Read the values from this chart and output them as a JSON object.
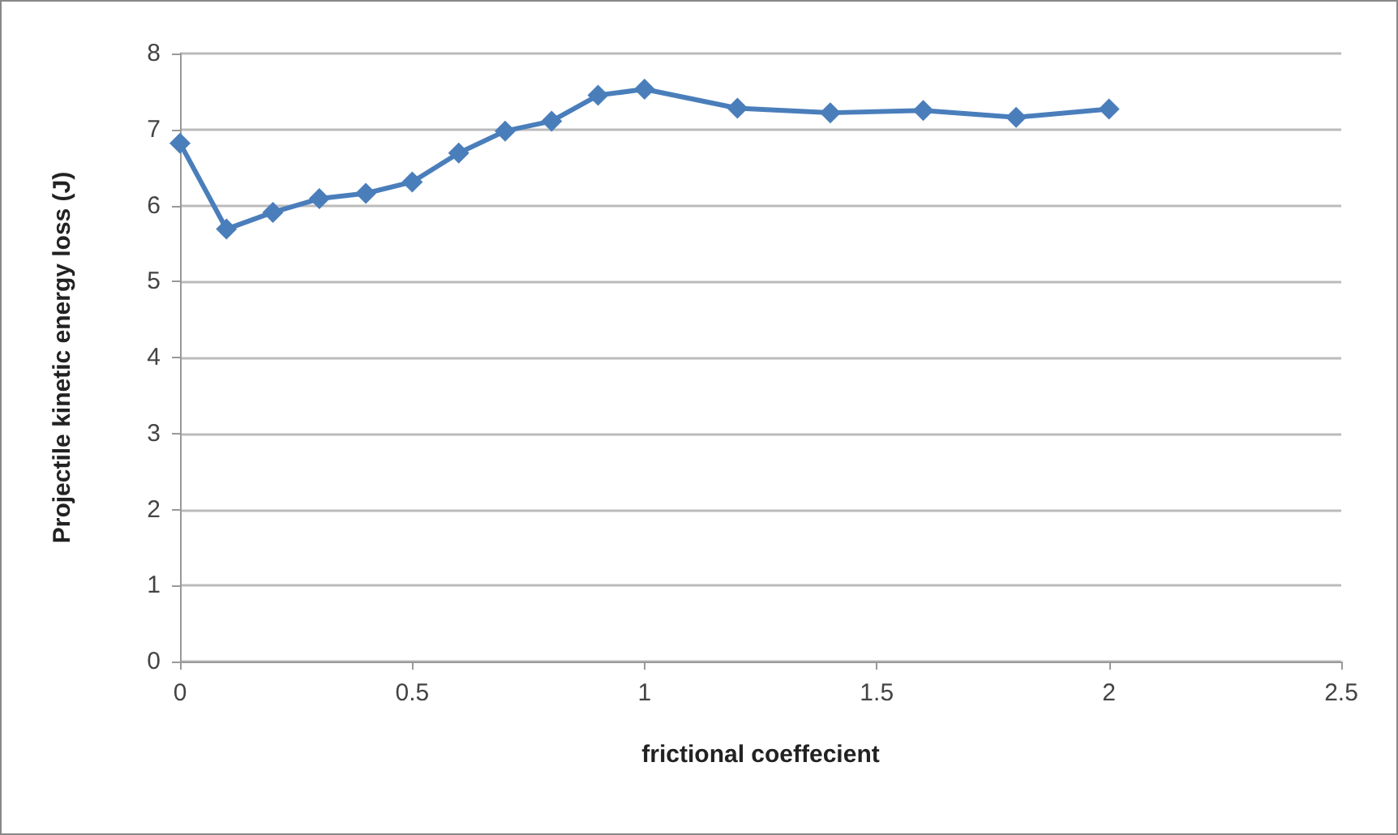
{
  "chart_data": {
    "type": "line",
    "xlabel": "frictional coeffecient",
    "ylabel": "Projectile kinetic energy loss (J)",
    "x": [
      0,
      0.1,
      0.2,
      0.3,
      0.4,
      0.5,
      0.6,
      0.7,
      0.8,
      0.9,
      1.0,
      1.2,
      1.4,
      1.6,
      1.8,
      2.0
    ],
    "series": [
      {
        "color": "#4a7ebb",
        "values": [
          6.82,
          5.69,
          5.91,
          6.09,
          6.16,
          6.31,
          6.69,
          6.98,
          7.11,
          7.45,
          7.53,
          7.28,
          7.22,
          7.25,
          7.16,
          7.27
        ]
      }
    ],
    "xlim": [
      0,
      2.5
    ],
    "xticks": [
      0,
      0.5,
      1,
      1.5,
      2,
      2.5
    ],
    "ylim": [
      0,
      8
    ],
    "yticks": [
      0,
      1,
      2,
      3,
      4,
      5,
      6,
      7,
      8
    ],
    "grid": "y",
    "marker": "diamond",
    "line_style": "solid"
  }
}
